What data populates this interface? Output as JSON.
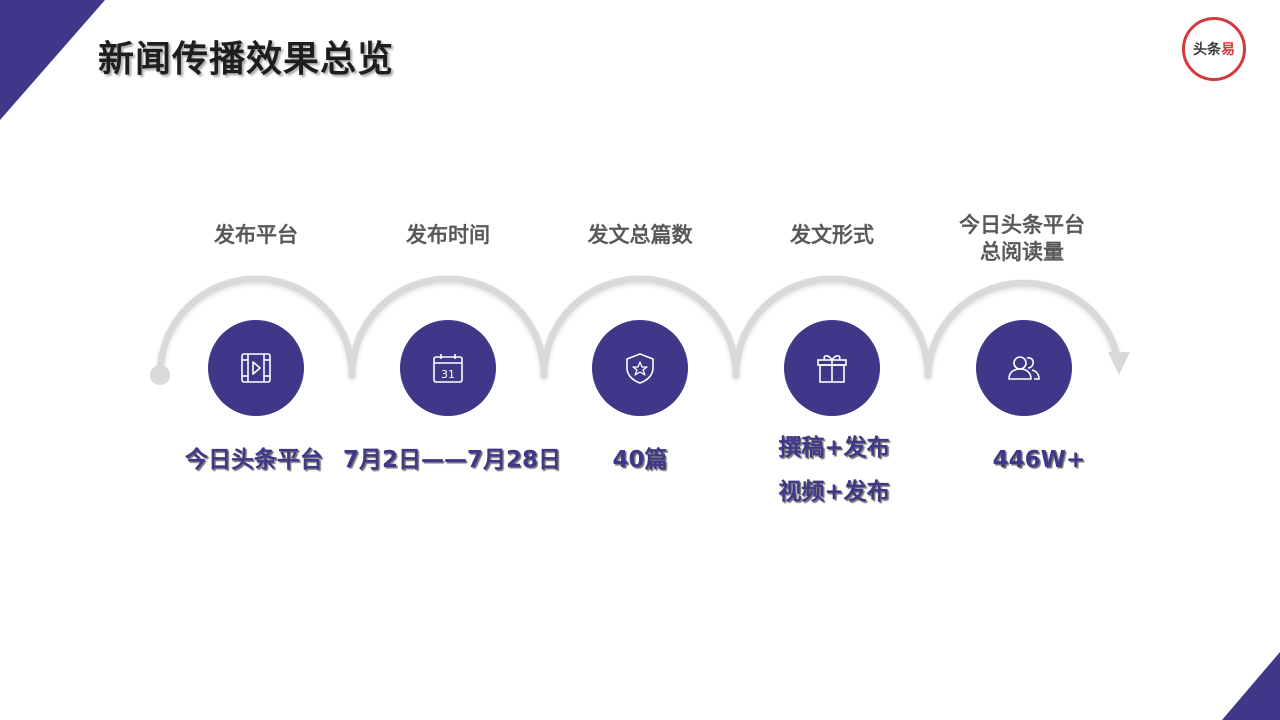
{
  "title": "新闻传播效果总览",
  "logo": {
    "text_main": "头条",
    "text_accent": "易"
  },
  "colors": {
    "accent": "#3f3787",
    "arc": "#d9d9d9",
    "logo_red": "#d3393d"
  },
  "steps": [
    {
      "label": "发布平台",
      "icon": "video-file-icon",
      "values": [
        "今日头条平台"
      ]
    },
    {
      "label": "发布时间",
      "icon": "calendar-icon",
      "icon_text": "31",
      "values": [
        "7月2日——7月28日"
      ]
    },
    {
      "label": "发文总篇数",
      "icon": "shield-star-icon",
      "values": [
        "40篇"
      ]
    },
    {
      "label": "发文形式",
      "icon": "gift-icon",
      "values": [
        "撰稿+发布",
        "视频+发布"
      ]
    },
    {
      "label": "今日头条平台\n总阅读量",
      "label_line1": "今日头条平台",
      "label_line2": "总阅读量",
      "icon": "users-icon",
      "values": [
        "446W+"
      ]
    }
  ]
}
